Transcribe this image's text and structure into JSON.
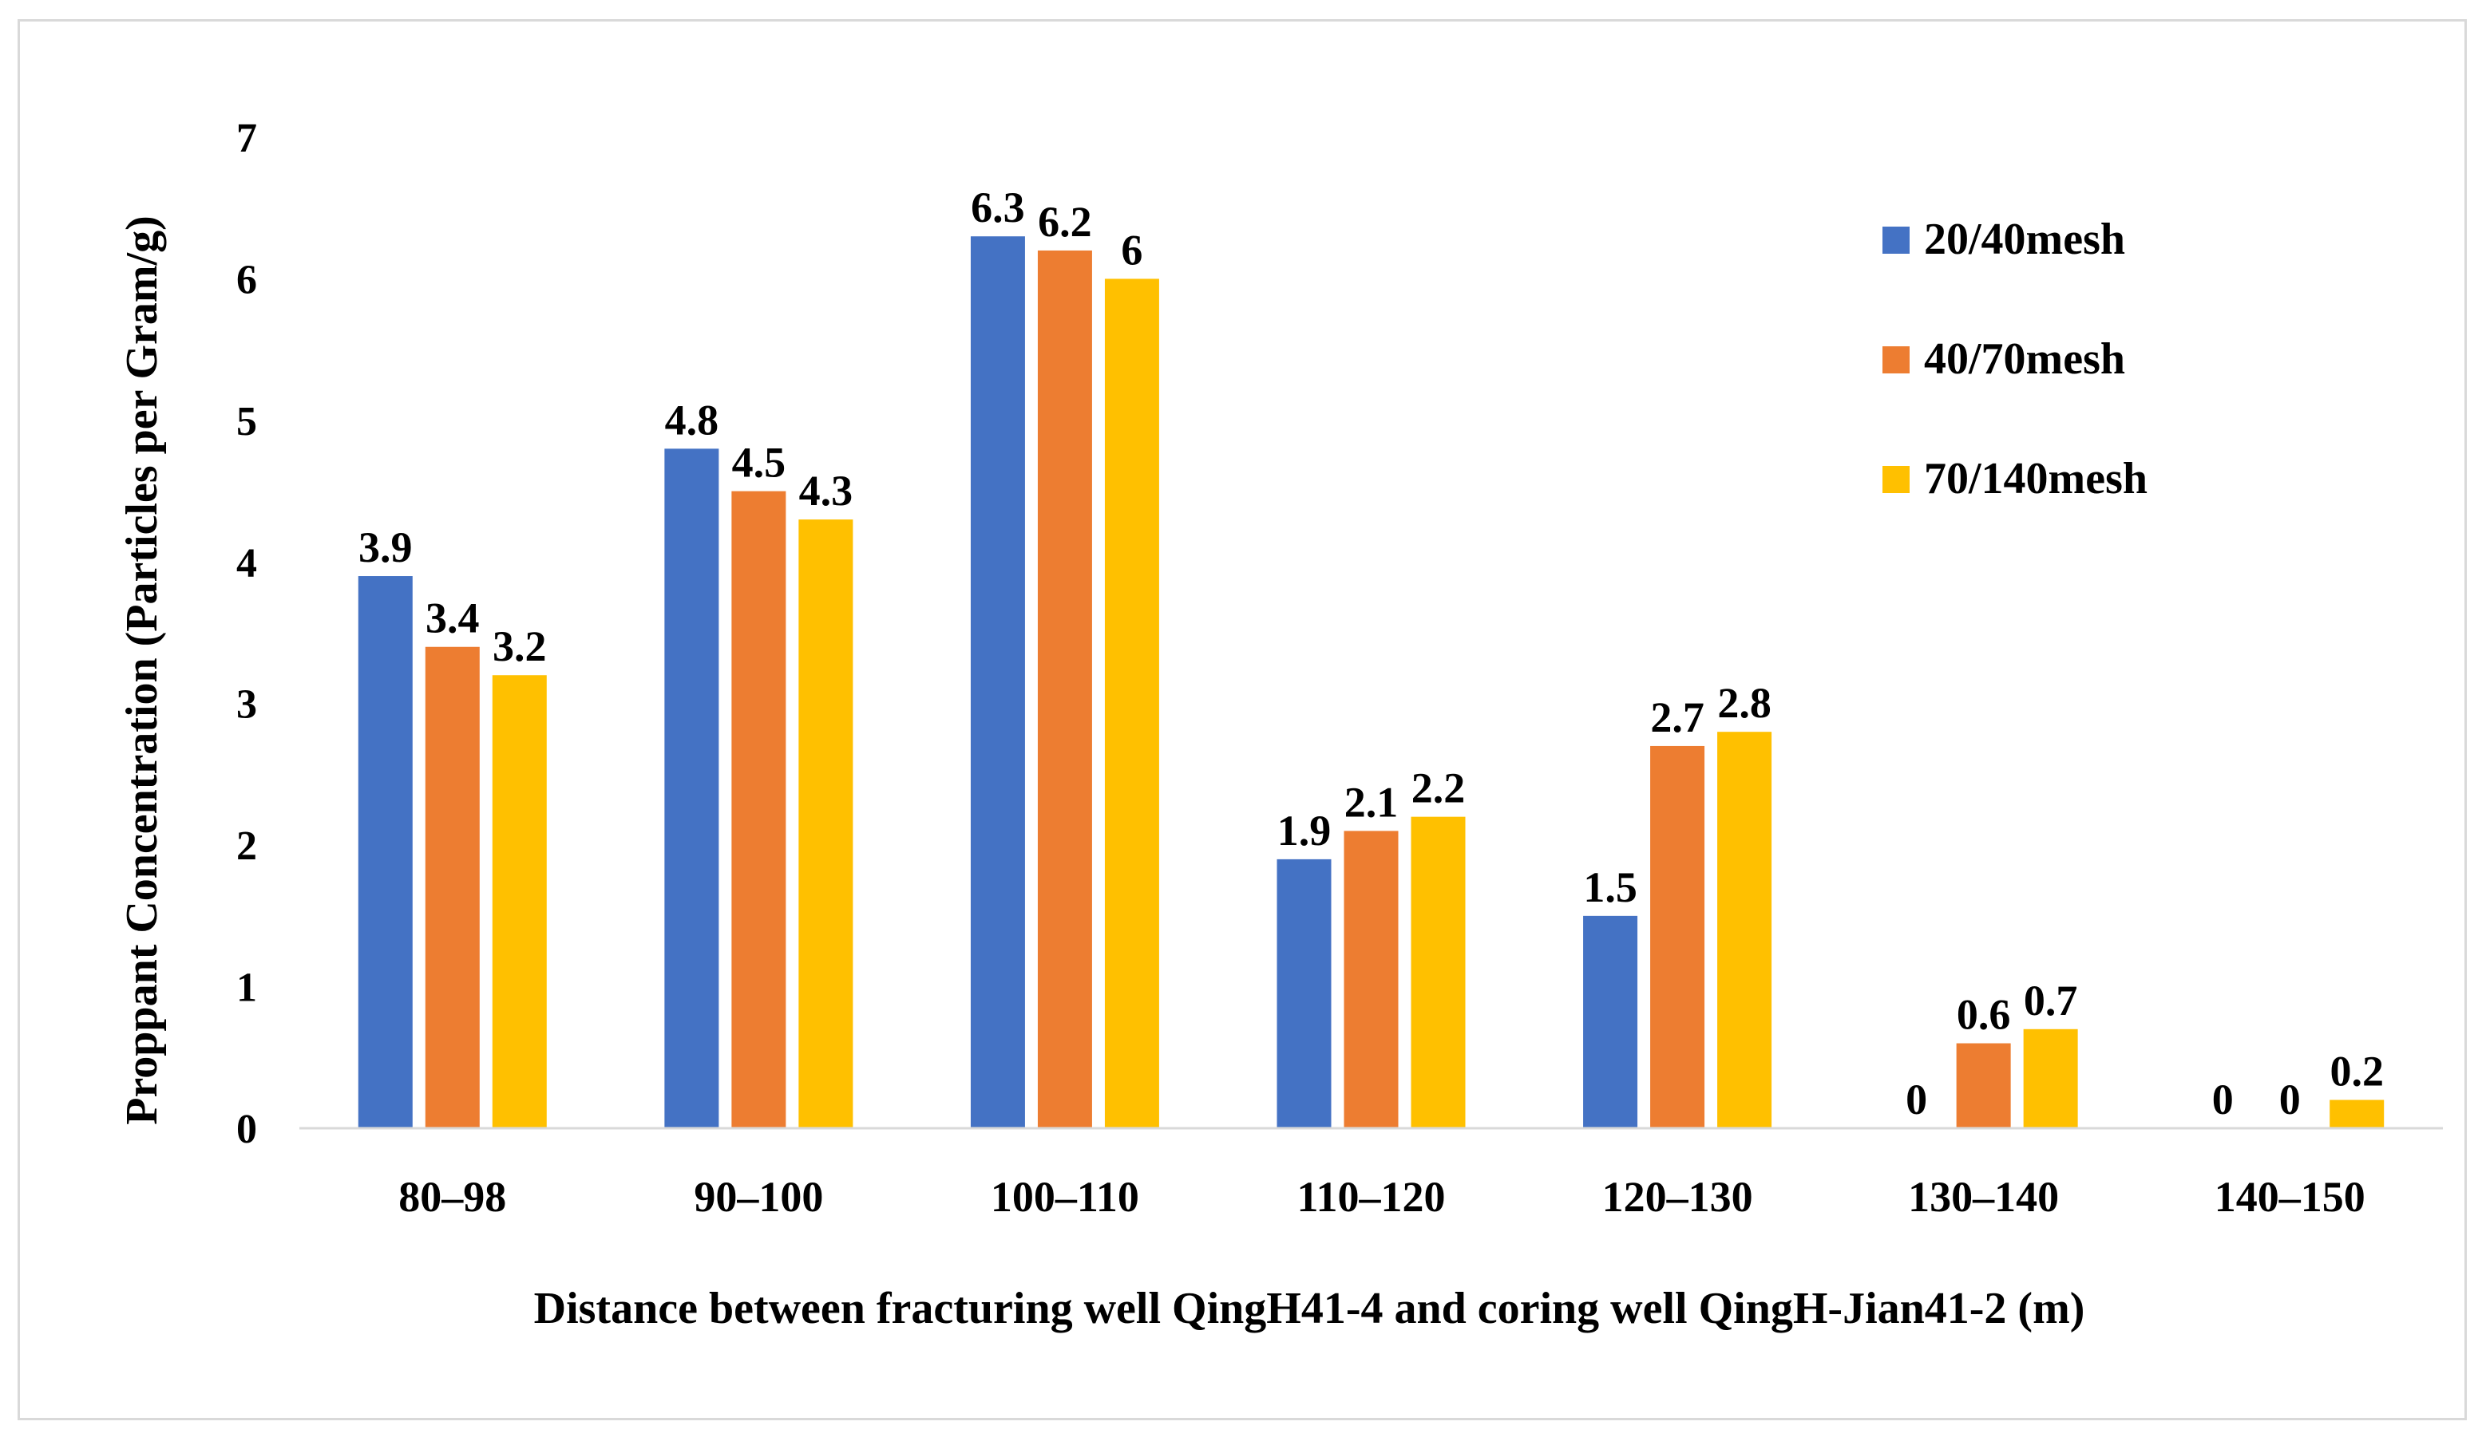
{
  "chart_data": {
    "type": "bar",
    "title": "",
    "xlabel": "Distance between fracturing well QingH41-4 and coring well QingH-Jian41-2 (m)",
    "ylabel": "Proppant Concentration (Particles per Gram/g)",
    "ylim": [
      0,
      7
    ],
    "yticks": [
      "0",
      "1",
      "2",
      "3",
      "4",
      "5",
      "6",
      "7"
    ],
    "grid": false,
    "legend_position": "top-right",
    "categories": [
      "80–98",
      "90–100",
      "100–110",
      "110–120",
      "120–130",
      "130–140",
      "140–150"
    ],
    "series": [
      {
        "name": "20/40mesh",
        "color": "#4472C4",
        "values": [
          3.9,
          4.8,
          6.3,
          1.9,
          1.5,
          0,
          0
        ],
        "labels": [
          "3.9",
          "4.8",
          "6.3",
          "1.9",
          "1.5",
          "0",
          "0"
        ]
      },
      {
        "name": "40/70mesh",
        "color": "#ED7D31",
        "values": [
          3.4,
          4.5,
          6.2,
          2.1,
          2.7,
          0.6,
          0
        ],
        "labels": [
          "3.4",
          "4.5",
          "6.2",
          "2.1",
          "2.7",
          "0.6",
          "0"
        ]
      },
      {
        "name": "70/140mesh",
        "color": "#FFC000",
        "values": [
          3.2,
          4.3,
          6,
          2.2,
          2.8,
          0.7,
          0.2
        ],
        "labels": [
          "3.2",
          "4.3",
          "6",
          "2.2",
          "2.8",
          "0.7",
          "0.2"
        ]
      }
    ]
  }
}
